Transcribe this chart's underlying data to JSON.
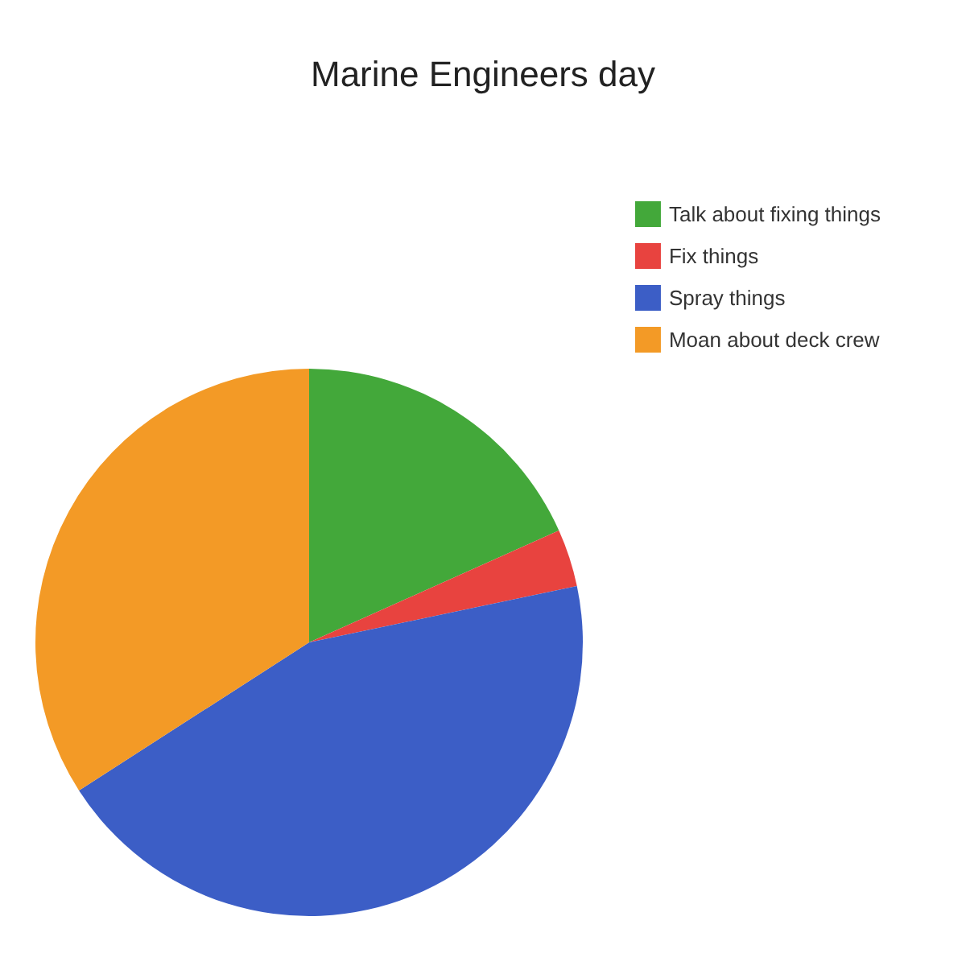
{
  "chart_data": {
    "type": "pie",
    "title": "Marine Engineers day",
    "categories": [
      "Talk about fixing things",
      "Fix things",
      "Spray things",
      "Moan about deck crew"
    ],
    "values": [
      18.3,
      3.4,
      44.2,
      34.1
    ],
    "colors": [
      "#43a83a",
      "#e8433f",
      "#3c5ec6",
      "#f39a26"
    ],
    "legend": "top right"
  }
}
